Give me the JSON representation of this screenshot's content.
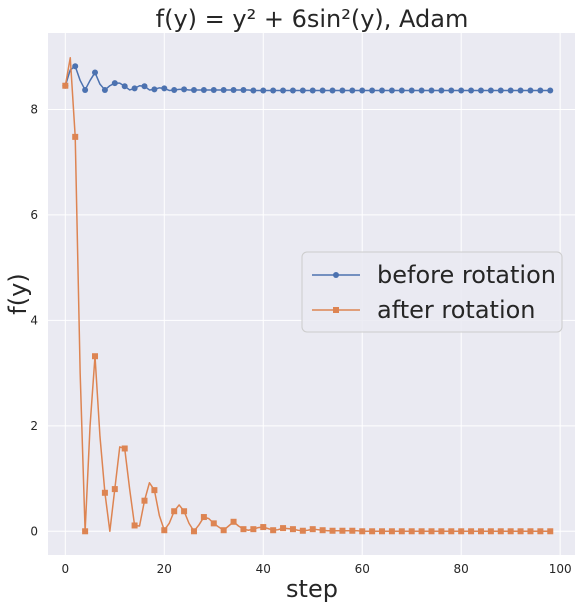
{
  "chart_data": {
    "type": "line",
    "title": "f(y) = y² + 6sin²(y), Adam",
    "xlabel": "step",
    "ylabel": "f(y)",
    "xlim": [
      -3.5,
      103
    ],
    "ylim": [
      -0.45,
      9.45
    ],
    "xticks": [
      0,
      20,
      40,
      60,
      80,
      100
    ],
    "yticks": [
      0,
      2,
      4,
      6,
      8
    ],
    "grid": true,
    "legend_position": "center-right",
    "series": [
      {
        "name": "before rotation",
        "color": "#4c72b0",
        "marker": "circle",
        "x": [
          0,
          1,
          2,
          3,
          4,
          5,
          6,
          7,
          8,
          9,
          10,
          11,
          12,
          13,
          14,
          15,
          16,
          17,
          18,
          19,
          20,
          21,
          22,
          23,
          24,
          25,
          26,
          27,
          28,
          29,
          30,
          31,
          32,
          33,
          34,
          35,
          36,
          37,
          38,
          39,
          40,
          41,
          42,
          43,
          44,
          45,
          46,
          47,
          48,
          49,
          50,
          51,
          52,
          53,
          54,
          55,
          56,
          57,
          58,
          59,
          60,
          61,
          62,
          63,
          64,
          65,
          66,
          67,
          68,
          69,
          70,
          71,
          72,
          73,
          74,
          75,
          76,
          77,
          78,
          79,
          80,
          81,
          82,
          83,
          84,
          85,
          86,
          87,
          88,
          89,
          90,
          91,
          92,
          93,
          94,
          95,
          96,
          97,
          98
        ],
        "y": [
          8.45,
          8.75,
          8.82,
          8.55,
          8.37,
          8.55,
          8.7,
          8.48,
          8.37,
          8.45,
          8.5,
          8.5,
          8.44,
          8.37,
          8.4,
          8.45,
          8.44,
          8.37,
          8.38,
          8.41,
          8.4,
          8.36,
          8.37,
          8.38,
          8.38,
          8.37,
          8.37,
          8.37,
          8.37,
          8.37,
          8.37,
          8.37,
          8.37,
          8.37,
          8.37,
          8.37,
          8.37,
          8.37,
          8.36,
          8.36,
          8.36,
          8.36,
          8.36,
          8.36,
          8.36,
          8.36,
          8.36,
          8.36,
          8.36,
          8.36,
          8.36,
          8.36,
          8.36,
          8.36,
          8.36,
          8.36,
          8.36,
          8.36,
          8.36,
          8.36,
          8.36,
          8.36,
          8.36,
          8.36,
          8.36,
          8.36,
          8.36,
          8.36,
          8.36,
          8.36,
          8.36,
          8.36,
          8.36,
          8.36,
          8.36,
          8.36,
          8.36,
          8.36,
          8.36,
          8.36,
          8.36,
          8.36,
          8.36,
          8.36,
          8.36,
          8.36,
          8.36,
          8.36,
          8.36,
          8.36,
          8.36,
          8.36,
          8.36,
          8.36,
          8.36,
          8.36,
          8.36,
          8.36,
          8.36
        ],
        "marker_every": 2
      },
      {
        "name": "after rotation",
        "color": "#dd8452",
        "marker": "square",
        "x": [
          0,
          1,
          2,
          3,
          4,
          5,
          6,
          7,
          8,
          9,
          10,
          11,
          12,
          13,
          14,
          15,
          16,
          17,
          18,
          19,
          20,
          21,
          22,
          23,
          24,
          25,
          26,
          27,
          28,
          29,
          30,
          31,
          32,
          33,
          34,
          35,
          36,
          37,
          38,
          39,
          40,
          41,
          42,
          43,
          44,
          45,
          46,
          47,
          48,
          49,
          50,
          51,
          52,
          53,
          54,
          55,
          56,
          57,
          58,
          59,
          60,
          61,
          62,
          63,
          64,
          65,
          66,
          67,
          68,
          69,
          70,
          71,
          72,
          73,
          74,
          75,
          76,
          77,
          78,
          79,
          80,
          81,
          82,
          83,
          84,
          85,
          86,
          87,
          88,
          89,
          90,
          91,
          92,
          93,
          94,
          95,
          96,
          97,
          98
        ],
        "y": [
          8.45,
          8.98,
          7.48,
          3.0,
          0.0,
          2.0,
          3.32,
          1.8,
          0.73,
          0.0,
          0.8,
          1.6,
          1.57,
          0.8,
          0.11,
          0.1,
          0.58,
          0.92,
          0.78,
          0.3,
          0.02,
          0.15,
          0.38,
          0.5,
          0.38,
          0.15,
          0.0,
          0.12,
          0.27,
          0.24,
          0.15,
          0.08,
          0.02,
          0.1,
          0.18,
          0.1,
          0.04,
          0.02,
          0.04,
          0.07,
          0.08,
          0.05,
          0.02,
          0.03,
          0.06,
          0.05,
          0.04,
          0.02,
          0.01,
          0.02,
          0.04,
          0.03,
          0.02,
          0.01,
          0.01,
          0.01,
          0.01,
          0.01,
          0.01,
          0.01,
          0.0,
          0.0,
          0.0,
          0.0,
          0.0,
          0.0,
          0.0,
          0.0,
          0.0,
          0.0,
          0.0,
          0.0,
          0.0,
          0.0,
          0.0,
          0.0,
          0.0,
          0.0,
          0.0,
          0.0,
          0.0,
          0.0,
          0.0,
          0.0,
          0.0,
          0.0,
          0.0,
          0.0,
          0.0,
          0.0,
          0.0,
          0.0,
          0.0,
          0.0,
          0.0,
          0.0,
          0.0,
          0.0,
          0.0
        ],
        "marker_every": 2
      }
    ]
  }
}
